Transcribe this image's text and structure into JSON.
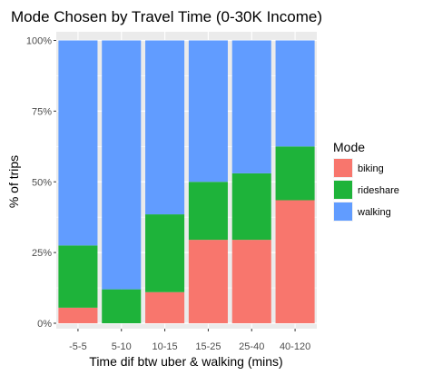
{
  "chart_data": {
    "type": "bar",
    "stacked": true,
    "title": "Mode Chosen by Travel Time (0-30K Income)",
    "xlabel": "Time dif btw uber & walking (mins)",
    "ylabel": "% of trips",
    "categories": [
      "-5-5",
      "5-10",
      "10-15",
      "15-25",
      "25-40",
      "40-120"
    ],
    "ylim": [
      0,
      1
    ],
    "y_ticks": [
      {
        "value": 0,
        "label": "0%"
      },
      {
        "value": 0.25,
        "label": "25%"
      },
      {
        "value": 0.5,
        "label": "50%"
      },
      {
        "value": 0.75,
        "label": "75%"
      },
      {
        "value": 1,
        "label": "100%"
      }
    ],
    "grid": true,
    "legend": {
      "title": "Mode",
      "position": "right"
    },
    "series": [
      {
        "name": "biking",
        "color": "#F8766D",
        "values": [
          0.055,
          0.0,
          0.11,
          0.295,
          0.295,
          0.435
        ]
      },
      {
        "name": "rideshare",
        "color": "#1EB33A",
        "values": [
          0.22,
          0.12,
          0.275,
          0.205,
          0.235,
          0.19
        ]
      },
      {
        "name": "walking",
        "color": "#619CFF",
        "values": [
          0.725,
          0.88,
          0.615,
          0.5,
          0.47,
          0.375
        ]
      }
    ],
    "colors": {
      "panel_background": "#EBEBEB",
      "gridline": "#FFFFFF"
    }
  }
}
